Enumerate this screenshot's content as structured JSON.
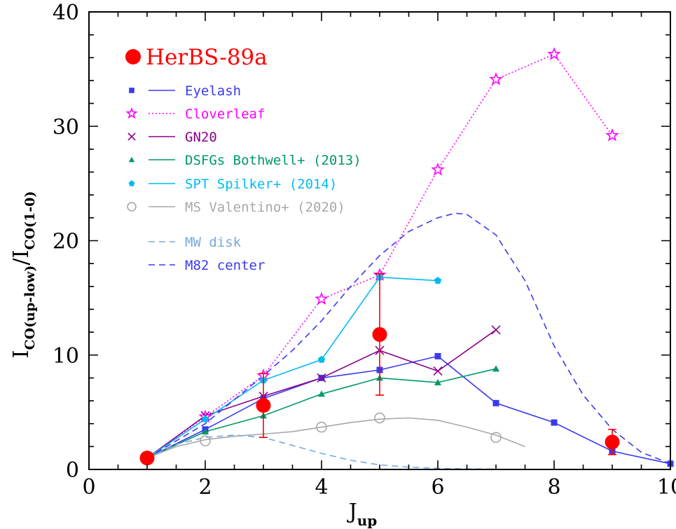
{
  "chart_data": {
    "type": "line",
    "title": "",
    "xlabel": {
      "main": "J",
      "sub": "up"
    },
    "ylabel": {
      "main1": "I",
      "sub1": "CO(up-low)",
      "slash": "/",
      "main2": "I",
      "sub2": "CO(1-0)"
    },
    "xlim": [
      0,
      10
    ],
    "ylim": [
      0,
      40
    ],
    "x_ticks": [
      "0",
      "2",
      "4",
      "6",
      "8",
      "10"
    ],
    "y_ticks": [
      "0",
      "10",
      "20",
      "30",
      "40"
    ],
    "grid": false,
    "legend_position": "top-left",
    "legend_title": "HerBS-89a",
    "highlight": {
      "name": "HerBS-89a",
      "color": "#ff0000",
      "points": [
        {
          "x": 1,
          "y": 1.0,
          "err": 0
        },
        {
          "x": 3,
          "y": 5.6,
          "err": 2.8
        },
        {
          "x": 5,
          "y": 11.8,
          "err": 5.3
        },
        {
          "x": 9,
          "y": 2.4,
          "err": 1.1
        }
      ]
    },
    "series": [
      {
        "name": "Eyelash",
        "color": "#3a3af0",
        "dash": "",
        "marker": "square",
        "x": [
          1,
          2,
          3,
          4,
          5,
          6,
          7,
          8,
          9,
          10
        ],
        "y": [
          1.0,
          3.5,
          6.2,
          8.0,
          8.7,
          9.9,
          5.8,
          4.1,
          1.6,
          0.5
        ]
      },
      {
        "name": "Cloverleaf",
        "color": "#ff00ff",
        "dash": "2,3",
        "marker": "star",
        "x": [
          1,
          2,
          3,
          4,
          5,
          6,
          7,
          8,
          9
        ],
        "y": [
          1.0,
          4.6,
          8.2,
          14.9,
          17.0,
          26.2,
          34.1,
          36.3,
          29.2
        ]
      },
      {
        "name": "GN20",
        "color": "#8b008b",
        "dash": "",
        "marker": "cross",
        "x": [
          1,
          2,
          3,
          4,
          5,
          6,
          7
        ],
        "y": [
          1.0,
          4.7,
          6.4,
          8.0,
          10.4,
          8.6,
          12.2
        ]
      },
      {
        "name": "DSFGs Bothwell+ (2013)",
        "color": "#009966",
        "dash": "",
        "marker": "triangle",
        "x": [
          1,
          2,
          3,
          4,
          5,
          6,
          7
        ],
        "y": [
          1.0,
          3.3,
          4.7,
          6.6,
          8.0,
          7.6,
          8.8
        ]
      },
      {
        "name": "SPT Spilker+ (2014)",
        "color": "#00bbee",
        "dash": "",
        "marker": "pentagon",
        "x": [
          1,
          2,
          3,
          4,
          5,
          6
        ],
        "y": [
          1.0,
          4.4,
          7.8,
          9.6,
          16.8,
          16.5
        ]
      },
      {
        "name": "MS Valentino+ (2020)",
        "color": "#a8a8a8",
        "dash": "",
        "marker": "circle",
        "x": [
          1,
          2,
          4,
          5,
          7
        ],
        "y": [
          1.0,
          2.5,
          3.7,
          4.5,
          2.8
        ],
        "curve": [
          [
            1,
            1.0
          ],
          [
            1.5,
            2.0
          ],
          [
            2,
            2.6
          ],
          [
            2.5,
            2.9
          ],
          [
            3,
            3.1
          ],
          [
            3.5,
            3.3
          ],
          [
            4,
            3.7
          ],
          [
            4.5,
            4.1
          ],
          [
            5,
            4.4
          ],
          [
            5.5,
            4.5
          ],
          [
            6,
            4.3
          ],
          [
            6.5,
            3.7
          ],
          [
            7,
            3.0
          ],
          [
            7.5,
            2.0
          ]
        ]
      },
      {
        "name": "MW disk",
        "color": "#77aadd",
        "dash": "9,6",
        "marker": "none",
        "x": [
          1,
          1.5,
          2,
          2.5,
          3,
          3.5,
          4,
          4.5,
          5,
          5.5,
          6,
          6.5,
          7
        ],
        "y": [
          1.0,
          2.2,
          2.8,
          3.0,
          2.8,
          2.1,
          1.4,
          0.8,
          0.4,
          0.2,
          0.1,
          0.05,
          0.03
        ]
      },
      {
        "name": "M82 center",
        "color": "#3a3af0",
        "dash": "9,6",
        "marker": "none",
        "x": [
          1,
          2,
          3,
          3.5,
          4,
          4.5,
          5,
          5.5,
          6,
          6.3,
          6.5,
          7,
          7.5,
          8,
          8.5,
          9,
          9.5,
          10
        ],
        "y": [
          1.0,
          4.0,
          8.2,
          10.4,
          13.0,
          16.0,
          18.7,
          20.8,
          22.0,
          22.4,
          22.3,
          20.5,
          16.5,
          10.8,
          6.5,
          3.5,
          1.5,
          0.5
        ]
      }
    ]
  }
}
